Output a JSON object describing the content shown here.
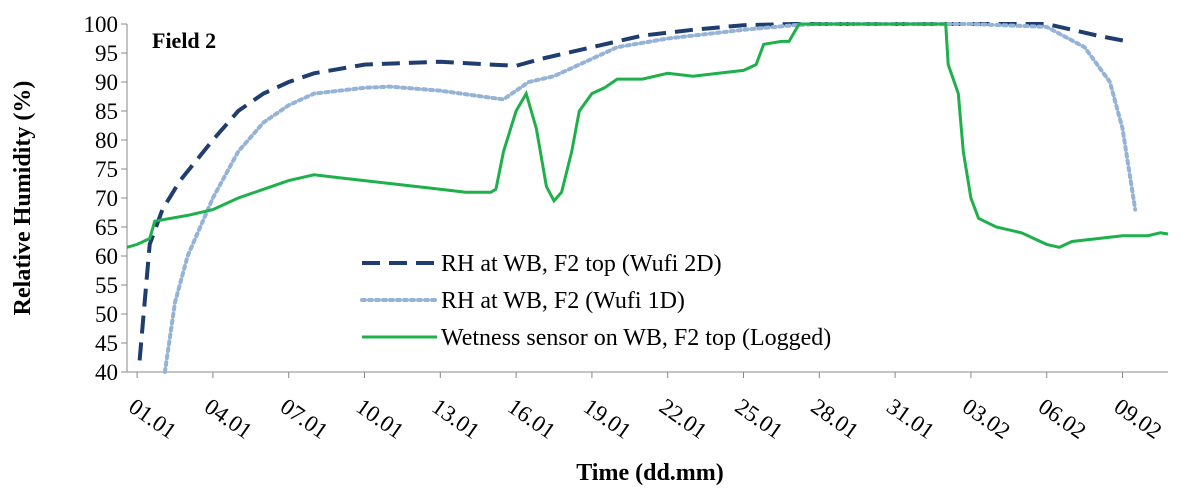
{
  "chart_data": {
    "type": "line",
    "title": "Field 2",
    "x_label": "Time (dd.mm)",
    "y_label": "Relative Humidity (%)",
    "xlim": [
      -0.4,
      40.8
    ],
    "ylim": [
      40,
      100
    ],
    "xticks": [
      {
        "value": 0,
        "label": "01.01"
      },
      {
        "value": 3,
        "label": "04.01"
      },
      {
        "value": 6,
        "label": "07.01"
      },
      {
        "value": 9,
        "label": "10.01"
      },
      {
        "value": 12,
        "label": "13.01"
      },
      {
        "value": 15,
        "label": "16.01"
      },
      {
        "value": 18,
        "label": "19.01"
      },
      {
        "value": 21,
        "label": "22.01"
      },
      {
        "value": 24,
        "label": "25.01"
      },
      {
        "value": 27,
        "label": "28.01"
      },
      {
        "value": 30,
        "label": "31.01"
      },
      {
        "value": 33,
        "label": "03.02"
      },
      {
        "value": 36,
        "label": "06.02"
      },
      {
        "value": 39,
        "label": "09.02"
      }
    ],
    "yticks": [
      40,
      45,
      50,
      55,
      60,
      65,
      70,
      75,
      80,
      85,
      90,
      95,
      100
    ],
    "series": [
      {
        "name": "RH at WB, F2 top (Wufi 2D)",
        "color": "#1f3d6e",
        "style": "dash",
        "x": [
          0.1,
          0.5,
          1,
          1.7,
          3,
          4,
          5,
          6,
          7,
          9,
          12,
          14,
          15,
          16,
          18,
          20,
          22,
          24,
          26,
          30,
          36,
          37,
          38,
          39.2
        ],
        "values": [
          42,
          62,
          68,
          73,
          80,
          85,
          88,
          90,
          91.5,
          93,
          93.5,
          93,
          92.8,
          94,
          96,
          98,
          99,
          99.8,
          100,
          100,
          100,
          99,
          98,
          97
        ]
      },
      {
        "name": "RH at WB, F2 (Wufi 1D)",
        "color": "#95b3d7",
        "style": "dot",
        "x": [
          1.1,
          1.5,
          2,
          3,
          4,
          5,
          6,
          7,
          9,
          10,
          12,
          14,
          14.5,
          15.5,
          16.5,
          17.5,
          19,
          21,
          24,
          26,
          27,
          33,
          36,
          37.5,
          38.5,
          39,
          39.5
        ],
        "values": [
          40,
          52,
          60,
          70,
          78,
          83,
          86,
          88,
          89,
          89.2,
          88.5,
          87.3,
          87,
          90,
          91,
          93,
          96,
          97.5,
          99,
          99.8,
          100,
          100,
          99.5,
          96,
          90,
          82,
          68
        ]
      },
      {
        "name": "Wetness sensor on WB, F2 top (Logged)",
        "color": "#1db04b",
        "style": "solid",
        "x": [
          -0.4,
          0,
          0.5,
          0.7,
          2,
          3,
          4,
          5,
          6,
          7,
          8,
          9,
          10,
          11,
          12,
          13,
          14,
          14.2,
          14.5,
          15,
          15.4,
          15.8,
          16.2,
          16.5,
          16.8,
          17.2,
          17.5,
          18,
          18.5,
          19,
          20,
          21,
          22,
          23,
          24,
          24.5,
          24.8,
          25.5,
          25.8,
          26.2,
          32,
          32.1,
          32.5,
          32.7,
          33,
          33.3,
          34,
          35,
          36,
          36.5,
          37,
          38,
          39,
          40,
          40.5,
          40.8
        ],
        "values": [
          61.5,
          62,
          63,
          66,
          67,
          68,
          70,
          71.5,
          73,
          74,
          73.5,
          73,
          72.5,
          72,
          71.5,
          71,
          71,
          71.5,
          78,
          85,
          88,
          82,
          72,
          69.5,
          71,
          78,
          85,
          88,
          89,
          90.5,
          90.5,
          91.5,
          91,
          91.5,
          92,
          93,
          96.5,
          97,
          97,
          100,
          100,
          93,
          88,
          78,
          70,
          66.5,
          65,
          64,
          62,
          61.5,
          62.5,
          63,
          63.5,
          63.5,
          64,
          63.8
        ]
      }
    ]
  }
}
